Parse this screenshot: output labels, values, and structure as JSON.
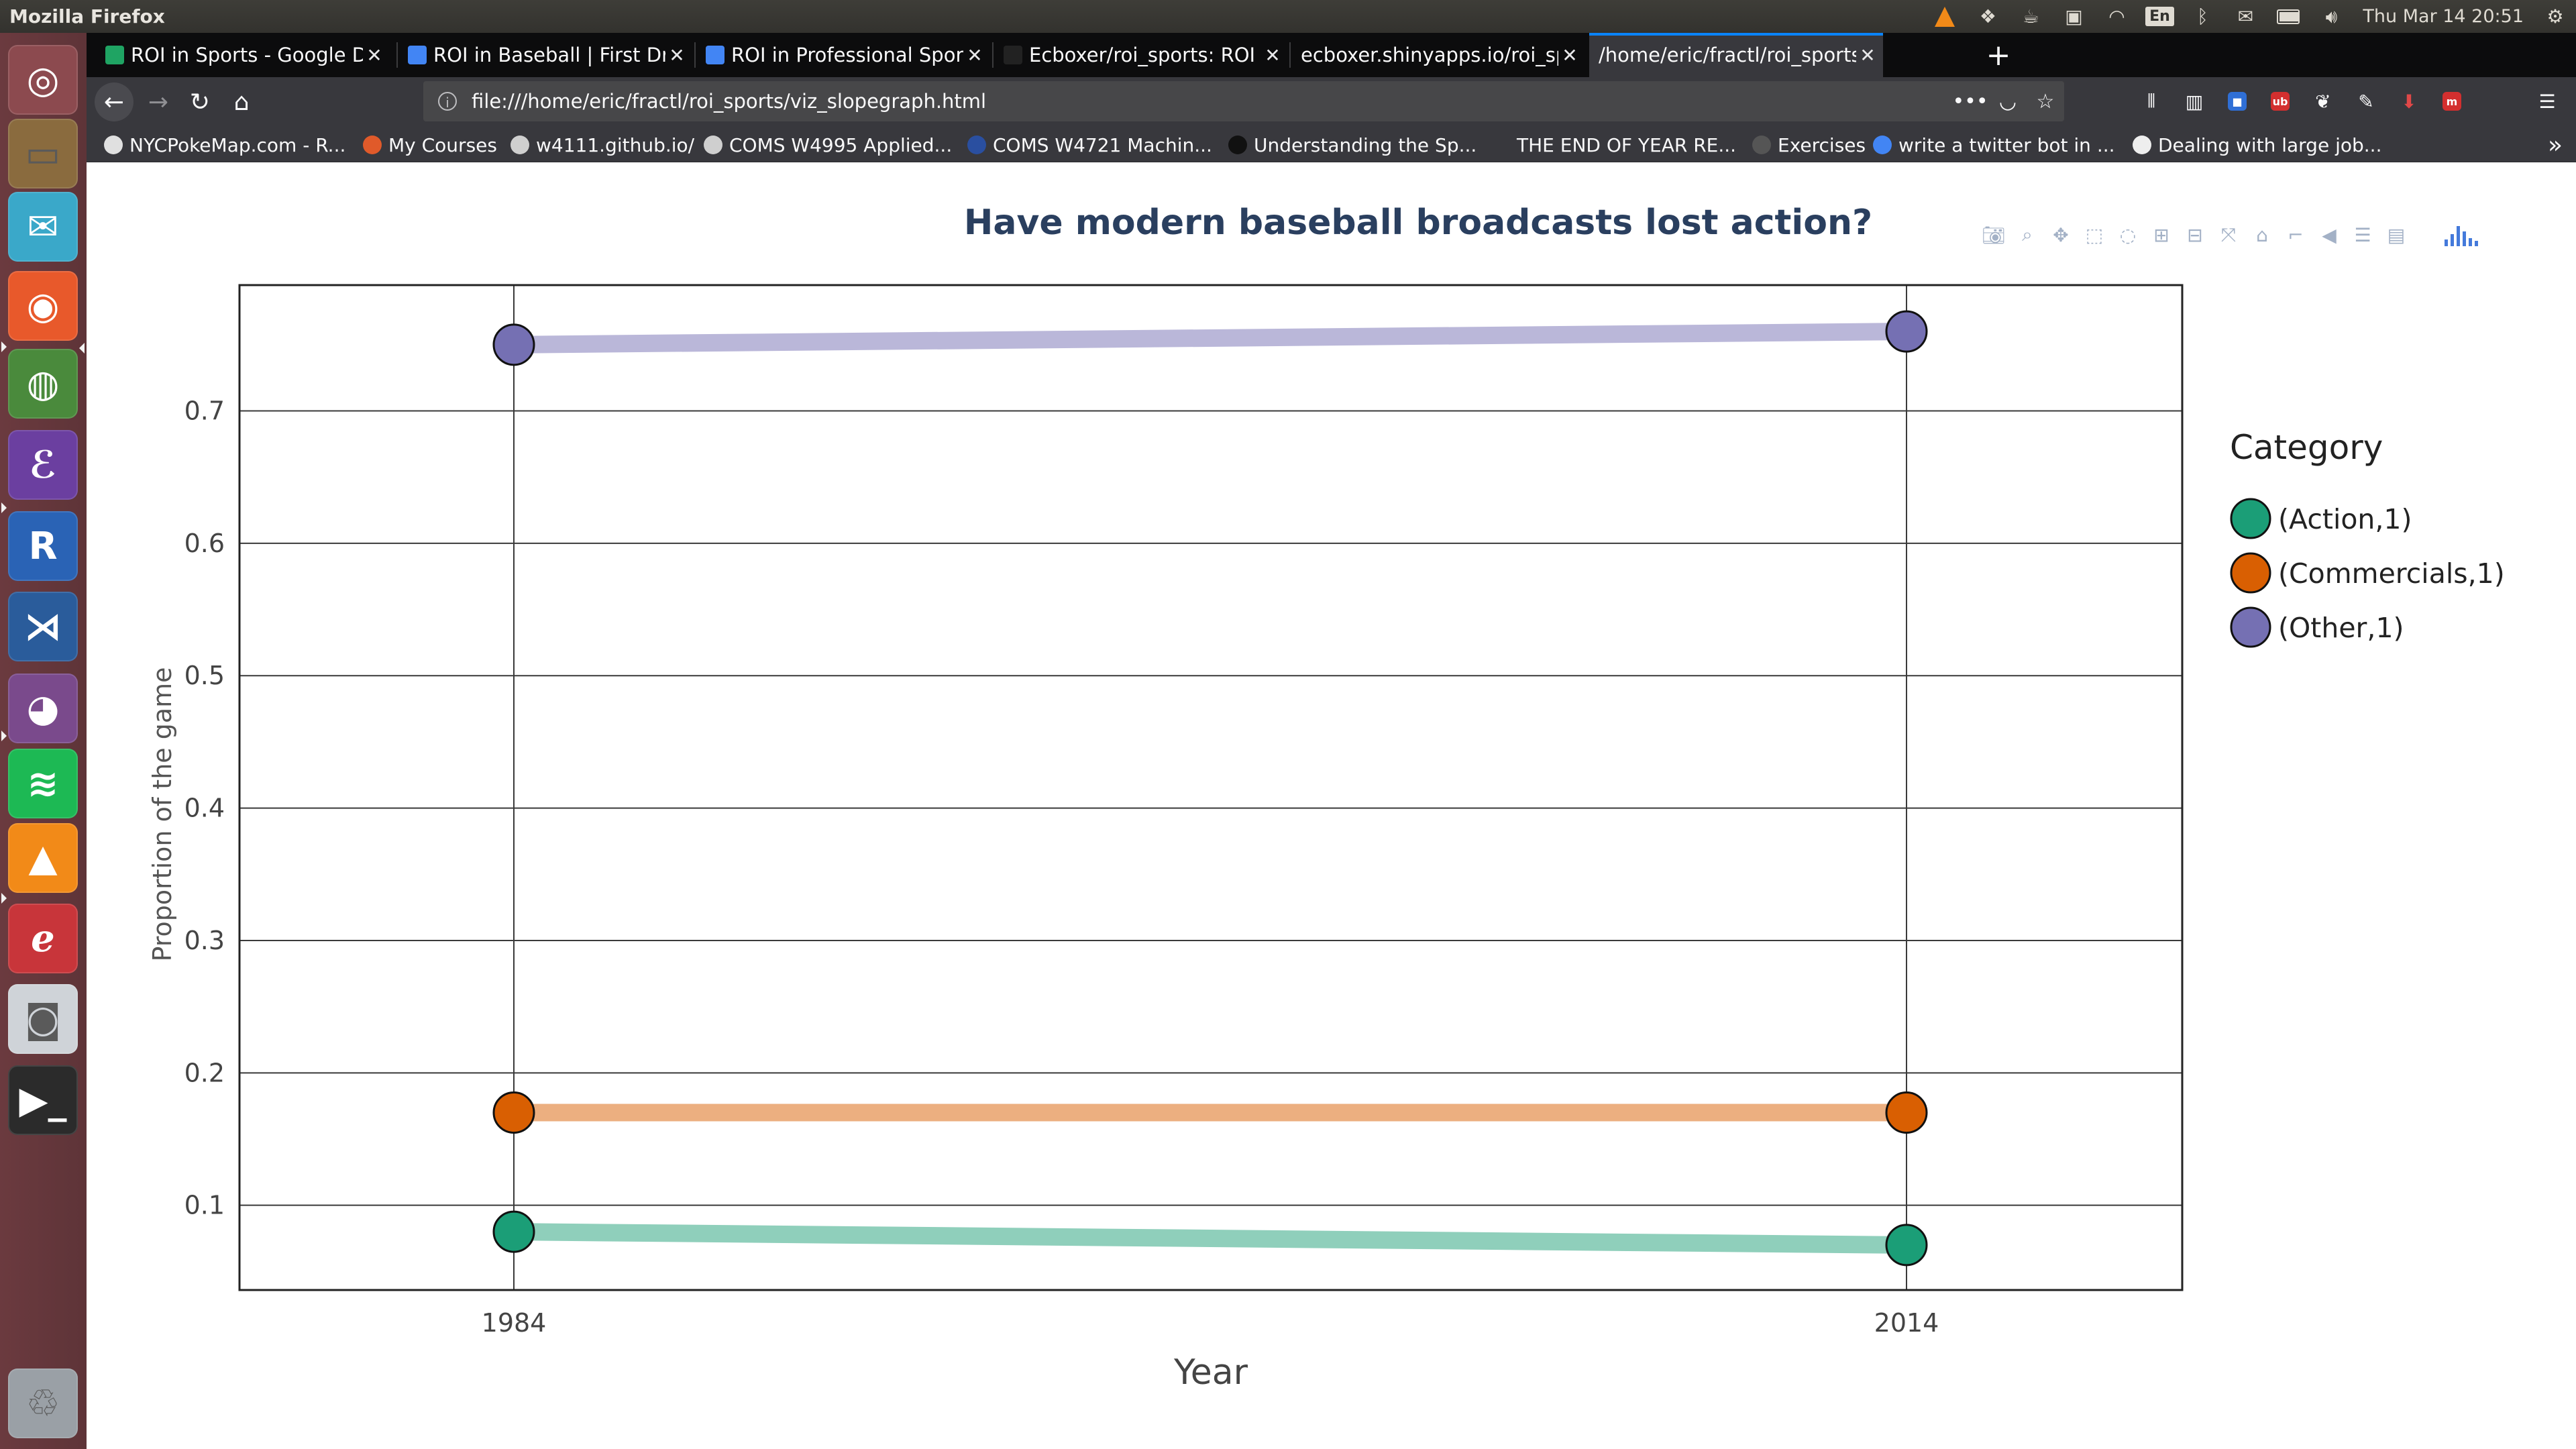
{
  "top_panel": {
    "app_title": "Mozilla Firefox",
    "keyboard": "En",
    "datetime": "Thu Mar 14  20:51"
  },
  "launcher": {
    "items": [
      {
        "name": "ubuntu-dash-icon",
        "color": "#8c4a4f"
      },
      {
        "name": "files-icon",
        "color": "#8a6b3e"
      },
      {
        "name": "mail-client-icon",
        "color": "#3aa8c9"
      },
      {
        "name": "firefox-icon",
        "color": "#e8592b"
      },
      {
        "name": "chrome-icon",
        "color": "#4a8a3c"
      },
      {
        "name": "emacs-icon",
        "color": "#6b3fa0"
      },
      {
        "name": "r-language-icon",
        "color": "#2a63b5"
      },
      {
        "name": "vscode-icon",
        "color": "#2a5c9b"
      },
      {
        "name": "pidgin-icon",
        "color": "#7a4a8c"
      },
      {
        "name": "spotify-icon",
        "color": "#1db954"
      },
      {
        "name": "vlc-icon",
        "color": "#f28a18"
      },
      {
        "name": "libreoffice-icon",
        "color": "#c8353a"
      },
      {
        "name": "disk-utility-icon",
        "color": "#cfd3d8"
      },
      {
        "name": "terminal-icon",
        "color": "#2b2b2b"
      },
      {
        "name": "trash-icon",
        "color": "#9aa0a6"
      }
    ]
  },
  "browser": {
    "tabs": [
      {
        "label": "ROI in Sports - Google Dr",
        "favicon_color": "#1fa463",
        "active": false
      },
      {
        "label": "ROI in Baseball | First Dra",
        "favicon_color": "#4285f4",
        "active": false
      },
      {
        "label": "ROI in Professional Sports",
        "favicon_color": "#4285f4",
        "active": false
      },
      {
        "label": "Ecboxer/roi_sports: ROI in",
        "favicon_color": "#222222",
        "active": false
      },
      {
        "label": "ecboxer.shinyapps.io/roi_spo",
        "favicon_color": "",
        "active": false
      },
      {
        "label": "/home/eric/fractl/roi_sports",
        "favicon_color": "",
        "active": true
      }
    ],
    "new_tab_label": "+",
    "url": "file:///home/eric/fractl/roi_sports/viz_slopegraph.html",
    "bookmarks": [
      {
        "label": "NYCPokeMap.com - R...",
        "icon_color": "#e0e0e0"
      },
      {
        "label": "My Courses",
        "icon_color": "#e05a2a"
      },
      {
        "label": "w4111.github.io/",
        "icon_color": "#cfcfcf"
      },
      {
        "label": "COMS W4995 Applied...",
        "icon_color": "#cfcfcf"
      },
      {
        "label": "COMS W4721 Machin...",
        "icon_color": "#2a4fa0"
      },
      {
        "label": "Understanding the Sp...",
        "icon_color": "#111111"
      },
      {
        "label": "THE END OF YEAR RE...",
        "icon_color": ""
      },
      {
        "label": "Exercises",
        "icon_color": "#555555"
      },
      {
        "label": "write a twitter bot in ...",
        "icon_color": "#4285f4"
      },
      {
        "label": "Dealing with large job...",
        "icon_color": "#eeeeee"
      }
    ]
  },
  "chart_data": {
    "type": "line",
    "title": "Have modern baseball broadcasts lost action?",
    "xlabel": "Year",
    "ylabel": "Proportion of the game",
    "x": [
      1984,
      2014
    ],
    "xticks": [
      "1984",
      "2014"
    ],
    "yticks": [
      0.1,
      0.2,
      0.3,
      0.4,
      0.5,
      0.6,
      0.7
    ],
    "ylim": [
      0.036,
      0.795
    ],
    "grid": true,
    "legend_title": "Category",
    "legend_position": "right",
    "series": [
      {
        "name": "(Action,1)",
        "values": [
          0.08,
          0.07
        ],
        "color": "#1b9e77",
        "line_color": "#8fcfbb"
      },
      {
        "name": "(Commercials,1)",
        "values": [
          0.17,
          0.17
        ],
        "color": "#d95f02",
        "line_color": "#ecaf80"
      },
      {
        "name": "(Other,1)",
        "values": [
          0.75,
          0.76
        ],
        "color": "#7570b3",
        "line_color": "#bab7d9"
      }
    ]
  }
}
